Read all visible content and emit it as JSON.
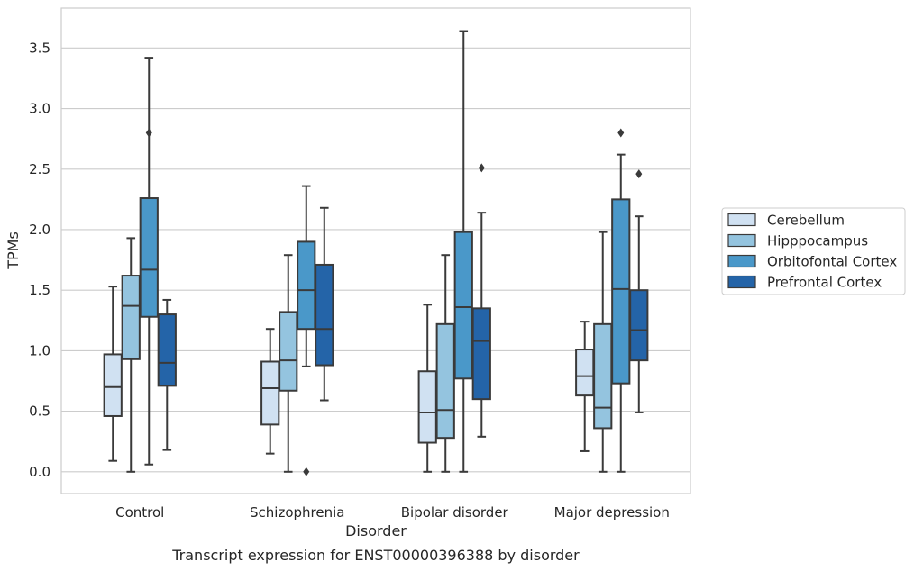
{
  "chart_data": {
    "type": "boxplot",
    "caption": "Transcript expression for ENST00000396388 by disorder",
    "xlabel": "Disorder",
    "ylabel": "TPMs",
    "ylim": [
      -0.18,
      3.83
    ],
    "yticks": [
      0.0,
      0.5,
      1.0,
      1.5,
      2.0,
      2.5,
      3.0,
      3.5
    ],
    "grid": "horizontal",
    "legend_position": "right",
    "categories": [
      "Control",
      "Schizophrenia",
      "Bipolar disorder",
      "Major depression"
    ],
    "series": [
      {
        "name": "Cerebellum",
        "color": "#d0e1f2",
        "boxes": [
          {
            "whislo": 0.09,
            "q1": 0.46,
            "med": 0.7,
            "q3": 0.97,
            "whishi": 1.53,
            "fliers": []
          },
          {
            "whislo": 0.15,
            "q1": 0.39,
            "med": 0.69,
            "q3": 0.91,
            "whishi": 1.18,
            "fliers": []
          },
          {
            "whislo": 0.0,
            "q1": 0.24,
            "med": 0.49,
            "q3": 0.83,
            "whishi": 1.38,
            "fliers": []
          },
          {
            "whislo": 0.17,
            "q1": 0.63,
            "med": 0.79,
            "q3": 1.01,
            "whishi": 1.24,
            "fliers": []
          }
        ]
      },
      {
        "name": "Hipppocampus",
        "color": "#94c4df",
        "boxes": [
          {
            "whislo": 0.0,
            "q1": 0.93,
            "med": 1.37,
            "q3": 1.62,
            "whishi": 1.93,
            "fliers": []
          },
          {
            "whislo": 0.0,
            "q1": 0.67,
            "med": 0.92,
            "q3": 1.32,
            "whishi": 1.79,
            "fliers": []
          },
          {
            "whislo": 0.0,
            "q1": 0.28,
            "med": 0.51,
            "q3": 1.22,
            "whishi": 1.79,
            "fliers": []
          },
          {
            "whislo": 0.0,
            "q1": 0.36,
            "med": 0.53,
            "q3": 1.22,
            "whishi": 1.98,
            "fliers": []
          }
        ]
      },
      {
        "name": "Orbitofontal Cortex",
        "color": "#4a98c9",
        "boxes": [
          {
            "whislo": 0.06,
            "q1": 1.28,
            "med": 1.67,
            "q3": 2.26,
            "whishi": 3.42,
            "fliers": [
              2.8
            ]
          },
          {
            "whislo": 0.87,
            "q1": 1.18,
            "med": 1.5,
            "q3": 1.9,
            "whishi": 2.36,
            "fliers": [
              0.0
            ]
          },
          {
            "whislo": 0.0,
            "q1": 0.77,
            "med": 1.36,
            "q3": 1.98,
            "whishi": 3.64,
            "fliers": []
          },
          {
            "whislo": 0.0,
            "q1": 0.73,
            "med": 1.51,
            "q3": 2.25,
            "whishi": 2.62,
            "fliers": [
              2.8
            ]
          }
        ]
      },
      {
        "name": "Prefrontal Cortex",
        "color": "#2464a8",
        "boxes": [
          {
            "whislo": 0.18,
            "q1": 0.71,
            "med": 0.9,
            "q3": 1.3,
            "whishi": 1.42,
            "fliers": []
          },
          {
            "whislo": 0.59,
            "q1": 0.88,
            "med": 1.18,
            "q3": 1.71,
            "whishi": 2.18,
            "fliers": []
          },
          {
            "whislo": 0.29,
            "q1": 0.6,
            "med": 1.08,
            "q3": 1.35,
            "whishi": 2.14,
            "fliers": [
              2.51
            ]
          },
          {
            "whislo": 0.49,
            "q1": 0.92,
            "med": 1.17,
            "q3": 1.5,
            "whishi": 2.11,
            "fliers": [
              2.46
            ]
          }
        ]
      }
    ]
  }
}
